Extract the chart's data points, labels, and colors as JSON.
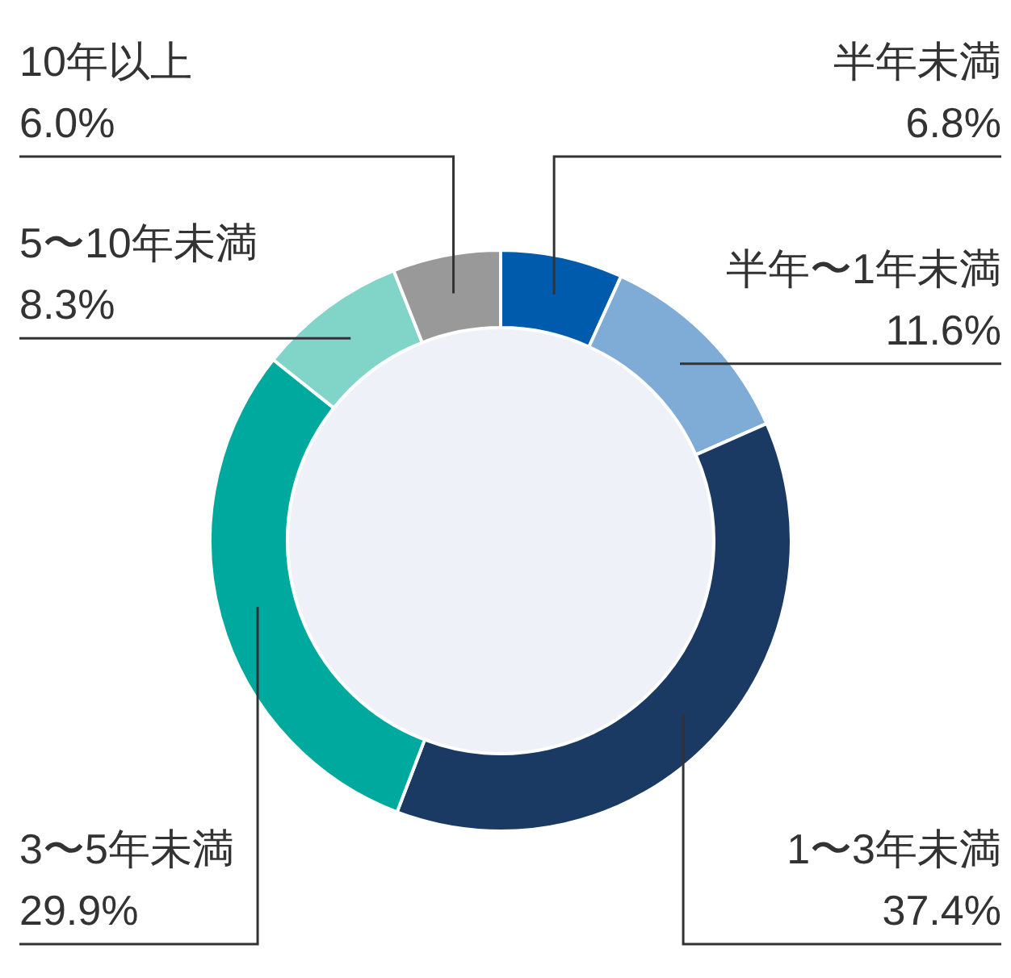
{
  "chart_data": {
    "type": "donut",
    "categories": [
      "半年未満",
      "半年〜1年未満",
      "1〜3年未満",
      "3〜5年未満",
      "5〜10年未満",
      "10年以上"
    ],
    "values": [
      6.8,
      11.6,
      37.4,
      29.9,
      8.3,
      6.0
    ],
    "value_labels": [
      "6.8%",
      "11.6%",
      "37.4%",
      "29.9%",
      "8.3%",
      "6.0%"
    ],
    "colors": [
      "#005bac",
      "#7facd6",
      "#1b3a63",
      "#00a99d",
      "#80d4c8",
      "#999999"
    ]
  }
}
